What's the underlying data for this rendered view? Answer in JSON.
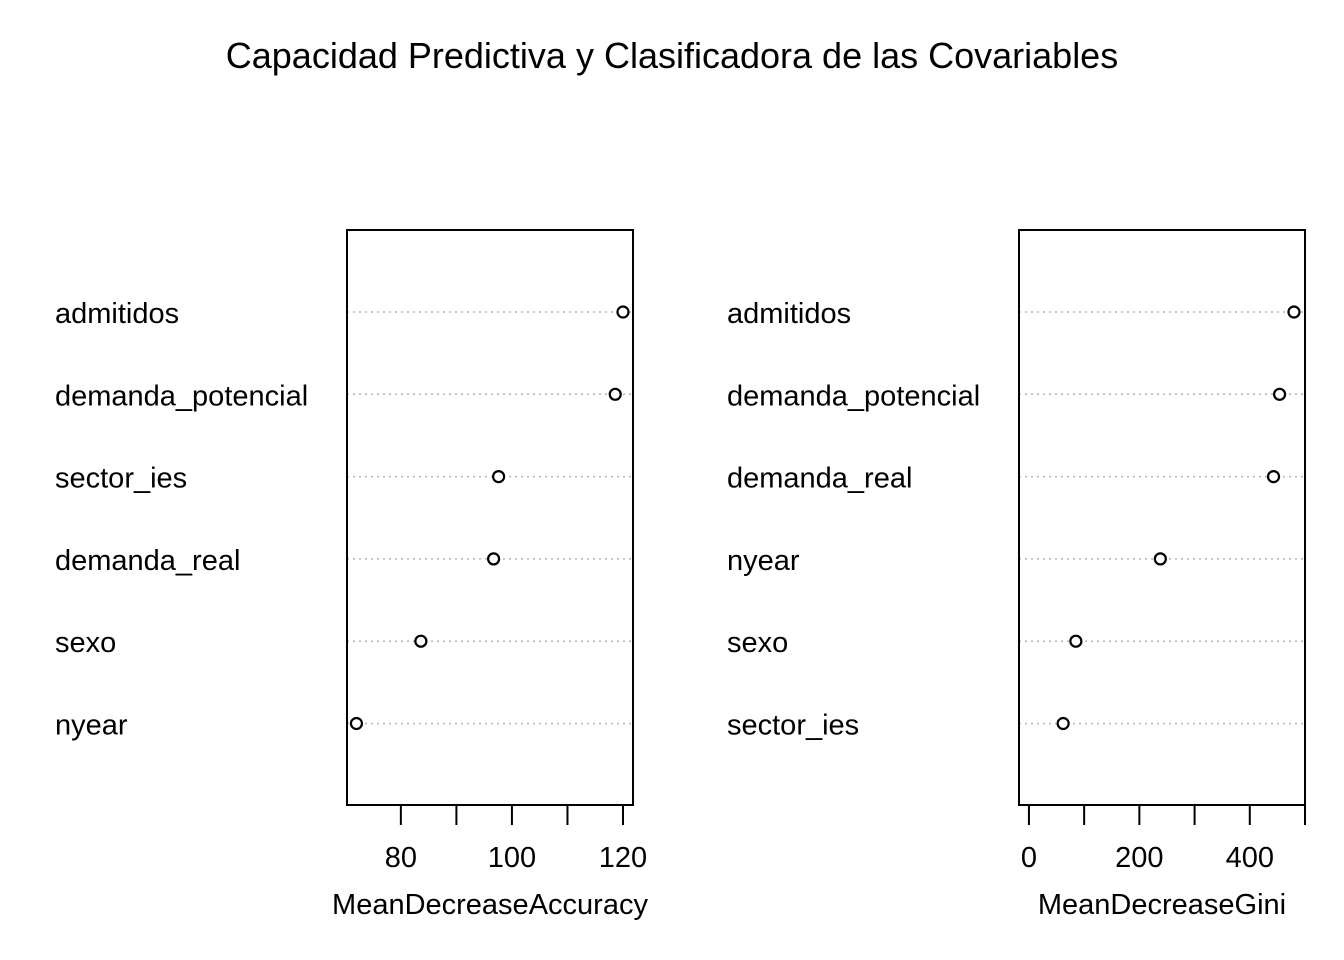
{
  "title": "Capacidad Predictiva y Clasificadora de las Covariables",
  "chart_data": [
    {
      "type": "scatter",
      "variant": "dotchart",
      "xlabel": "MeanDecreaseAccuracy",
      "ylabel": "",
      "xlim": [
        70.3,
        121.8
      ],
      "ticks": [
        80,
        90,
        100,
        110,
        120
      ],
      "tick_labels": [
        "80",
        "",
        "100",
        "",
        "120"
      ],
      "grid": "dotted horizontal guide lines",
      "categories": [
        "admitidos",
        "demanda_potencial",
        "sector_ies",
        "demanda_real",
        "sexo",
        "nyear"
      ],
      "values": [
        120.0,
        118.6,
        97.6,
        96.7,
        83.6,
        72.0
      ]
    },
    {
      "type": "scatter",
      "variant": "dotchart",
      "xlabel": "MeanDecreaseGini",
      "ylabel": "",
      "xlim": [
        -18,
        500
      ],
      "ticks": [
        0,
        100,
        200,
        300,
        400,
        500
      ],
      "tick_labels": [
        "0",
        "",
        "200",
        "",
        "400",
        ""
      ],
      "grid": "dotted horizontal guide lines",
      "categories": [
        "admitidos",
        "demanda_potencial",
        "demanda_real",
        "nyear",
        "sexo",
        "sector_ies"
      ],
      "values": [
        480,
        454,
        443,
        238,
        85,
        62
      ]
    }
  ]
}
